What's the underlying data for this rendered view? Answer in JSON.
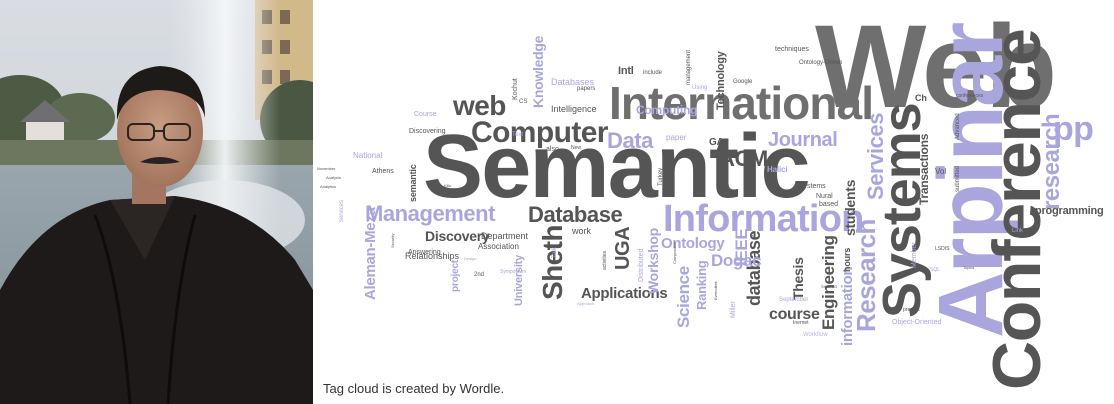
{
  "caption": "Tag cloud is created by Wordle.",
  "palette": {
    "dark_gray": "#555555",
    "lavender": "#a9a6de"
  },
  "photo": {
    "icon": "portrait-photo"
  },
  "cloud": {
    "words": [
      "Web",
      "Semantic",
      "Arpinar",
      "Conference",
      "Systems",
      "International",
      "Information",
      "Computer",
      "web",
      "Management",
      "Database",
      "Data",
      "Sheth",
      "Journal",
      "ACM",
      "pp",
      "research",
      "Research",
      "Services",
      "Engineering",
      "database",
      "Applications",
      "Ontology",
      "UGA",
      "Dogac",
      "IEEE",
      "Science",
      "Knowledge",
      "Aleman-Meza",
      "Discovery",
      "course",
      "students",
      "information",
      "Thesis",
      "Workshop",
      "Ranking",
      "Transactions",
      "programming",
      "Computing",
      "Technology",
      "Intl",
      "Intelligence",
      "Databases",
      "Department",
      "Association",
      "Relationships",
      "Answering",
      "project",
      "University",
      "semantic",
      "Course",
      "Discovering",
      "National",
      "Athens",
      "GA",
      "Ch",
      "Vol",
      "hours",
      "Miller",
      "Halici",
      "Turkey",
      "techniques",
      "Ontology-Driven",
      "conferences",
      "Advanced",
      "submitted",
      "Member",
      "Object-Oriented",
      "Workflow",
      "September",
      "systems",
      "work",
      "Distributed",
      "Kochut",
      "CS",
      "management",
      "Using",
      "Google",
      "include",
      "papers",
      "paper",
      "also",
      "New",
      "Text",
      "Nural",
      "based",
      "Link",
      "Inernet",
      "present",
      "LSDIS",
      "SQL",
      "Topics",
      "Approach",
      "Design",
      "2nd",
      "Symposium",
      "Talk",
      "Security",
      "activities",
      "Composition",
      "Evrendilek",
      "May",
      "SIGMOD",
      "Kilic",
      "November",
      "Analysis",
      "Analytics",
      "services",
      "Language",
      "METU",
      "Committee",
      "Prof",
      "Networks",
      "METU",
      "presentation",
      "Lab",
      "Special",
      "Query",
      "Question",
      "Complex",
      "workflow",
      "Mobile",
      "Sensor",
      "including",
      "Chair",
      "Developed",
      "Technical",
      "NSF",
      "Other",
      "Mountain",
      "Korkut",
      "IC",
      "PhD",
      "Process",
      "Systems",
      "Lecture",
      "Events"
    ]
  }
}
